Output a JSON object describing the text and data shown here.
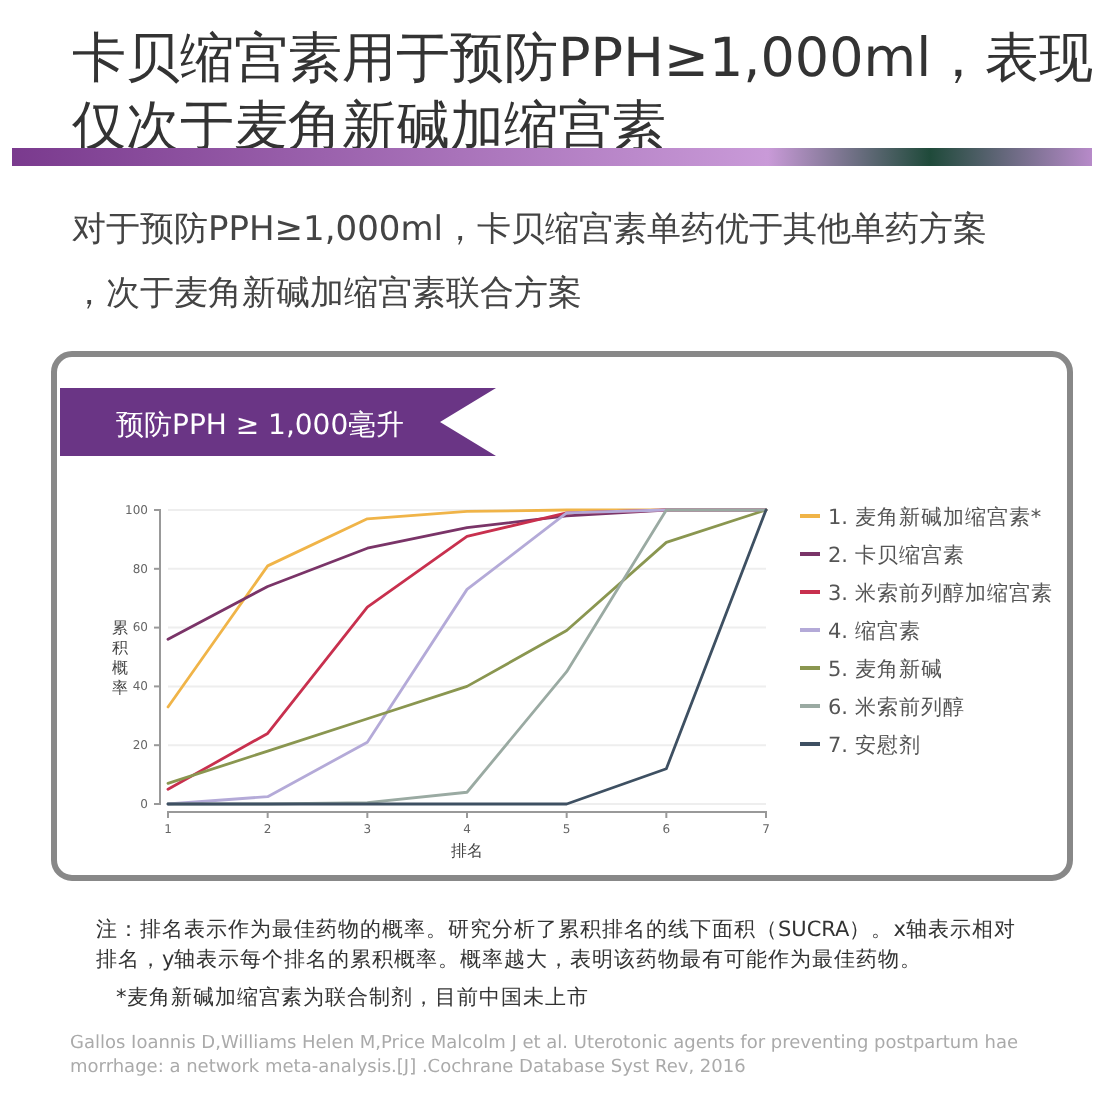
{
  "chart_data": {
    "type": "line",
    "title": "卡贝缩宫素用于预防PPH≥1,000ml，表现仅次于麦角新碱加缩宫素",
    "subtitle": "对于预防PPH≥1,000ml，卡贝缩宫素单药优于其他单药方案，次于麦角新碱加缩宫素联合方案",
    "xlabel": "排名",
    "ylabel": "累积概率",
    "x": [
      1,
      2,
      3,
      4,
      5,
      6,
      7
    ],
    "series": [
      {
        "name": "1. 麦角新碱加缩宫素*",
        "color": "#f0b448",
        "values": [
          33,
          81,
          97,
          99.5,
          100,
          100,
          100
        ]
      },
      {
        "name": "2. 卡贝缩宫素",
        "color": "#7a3468",
        "values": [
          56,
          74,
          87,
          94,
          98,
          100,
          100
        ]
      },
      {
        "name": "3. 米索前列醇加缩宫素",
        "color": "#c8304e",
        "values": [
          5,
          24,
          67,
          91,
          99,
          100,
          100
        ]
      },
      {
        "name": "4. 缩宫素",
        "color": "#b4aad8",
        "values": [
          0,
          2.5,
          21,
          73,
          99,
          100,
          100
        ]
      },
      {
        "name": "5. 麦角新碱",
        "color": "#8a9650",
        "values": [
          7,
          18,
          29,
          40,
          59,
          89,
          100
        ]
      },
      {
        "name": "6. 米索前列醇",
        "color": "#9aaaa2",
        "values": [
          0,
          0,
          0.5,
          4,
          45,
          100,
          100
        ]
      },
      {
        "name": "7. 安慰剂",
        "color": "#3e5062",
        "values": [
          0,
          0,
          0,
          0,
          0,
          12,
          100
        ]
      }
    ],
    "xlim": [
      1,
      7
    ],
    "xticks": [
      1,
      2,
      3,
      4,
      5,
      6,
      7
    ],
    "ylim": [
      0,
      100
    ],
    "yticks": [
      0,
      20,
      40,
      60,
      80,
      100
    ],
    "grid": "y",
    "legend": "right",
    "marker": "none",
    "line_style": "solid",
    "annotations": [
      "预防PPH ≥ 1,000毫升",
      "注：排名表示作为最佳药物的概率。研究分析了累积排名的线下面积（SUCRA）。x轴表示相对排名，y轴表示每个排名的累积概率。概率越大，表明该药物最有可能作为最佳药物。",
      "*麦角新碱加缩宫素为联合制剂，目前中国未上市",
      "Gallos Ioannis D,Williams Helen M,Price Malcolm J et al. Uterotonic agents for preventing postpartum haemorrhage: a network meta-analysis.[J] .Cochrane Database Syst Rev, 2016"
    ]
  }
}
